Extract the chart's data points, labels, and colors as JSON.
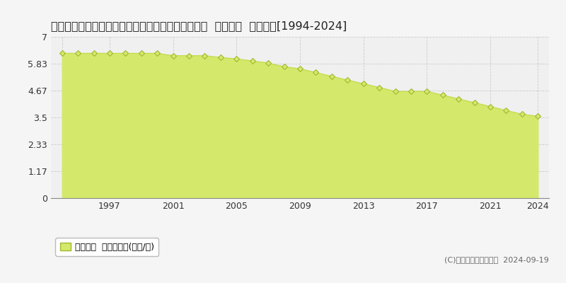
{
  "title": "宮崎県西諸県郡高原町大字西麓字上大迫３３３番４  公示地価  地価推移[1994-2024]",
  "years": [
    1994,
    1995,
    1996,
    1997,
    1998,
    1999,
    2000,
    2001,
    2002,
    2003,
    2004,
    2005,
    2006,
    2007,
    2008,
    2009,
    2010,
    2011,
    2012,
    2013,
    2014,
    2015,
    2016,
    2017,
    2018,
    2019,
    2020,
    2021,
    2022,
    2023,
    2024
  ],
  "values": [
    6.28,
    6.28,
    6.28,
    6.28,
    6.28,
    6.28,
    6.28,
    6.18,
    6.18,
    6.18,
    6.1,
    6.04,
    5.95,
    5.86,
    5.7,
    5.61,
    5.45,
    5.28,
    5.12,
    4.96,
    4.8,
    4.63,
    4.63,
    4.63,
    4.47,
    4.3,
    4.14,
    3.97,
    3.8,
    3.64,
    3.55
  ],
  "fill_color": "#d4e96b",
  "line_color": "#c8dc50",
  "marker_face_color": "#d4e96b",
  "marker_edge_color": "#a0b830",
  "plot_bg_color": "#f0f0f0",
  "fig_bg_color": "#f5f5f5",
  "grid_color": "#cccccc",
  "yticks": [
    0,
    1.17,
    2.33,
    3.5,
    4.67,
    5.83,
    7
  ],
  "ytick_labels": [
    "0",
    "1.17",
    "2.33",
    "3.5",
    "4.67",
    "5.83",
    "7"
  ],
  "xticks": [
    1994,
    1997,
    2001,
    2005,
    2009,
    2013,
    2017,
    2021,
    2024
  ],
  "xtick_labels": [
    "",
    "1997",
    "2001",
    "2005",
    "2009",
    "2013",
    "2017",
    "2021",
    "2024"
  ],
  "ylim": [
    0,
    7
  ],
  "xlim": [
    1993.3,
    2024.7
  ],
  "legend_label": "公示地価  平均坪単価(万円/坪)",
  "copyright_text": "(C)土地価格ドットコム  2024-09-19",
  "title_fontsize": 11.5,
  "axis_fontsize": 9,
  "legend_fontsize": 9
}
